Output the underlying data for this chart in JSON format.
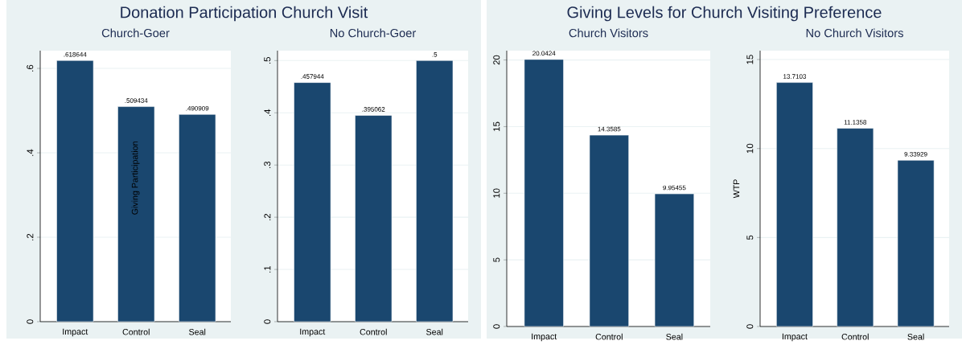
{
  "chart_data": [
    {
      "type": "bar",
      "title": "Donation Participation Church Visit",
      "subtitle": "Church-Goer",
      "ylabel": "Giving Participation",
      "categories": [
        "Impact",
        "Control",
        "Seal"
      ],
      "values": [
        0.618644,
        0.509434,
        0.490909
      ],
      "value_labels": [
        ".618644",
        ".509434",
        ".490909"
      ],
      "color": "#1a476f",
      "ylim": [
        0,
        0.642
      ],
      "yticks": [
        0,
        {
          "value": 0.2,
          "label": ".2"
        },
        {
          "value": 0.4,
          "label": ".4"
        },
        {
          "value": 0.6,
          "label": ".6"
        }
      ],
      "grid": "y"
    },
    {
      "type": "bar",
      "title": "No Church-Goer",
      "categories": [
        "Impact",
        "Control",
        "Seal"
      ],
      "values": [
        0.457944,
        0.395062,
        0.5
      ],
      "value_labels": [
        ".457944",
        ".395062",
        ".5"
      ],
      "color": "#1a476f",
      "ylim": [
        0,
        0.519
      ],
      "yticks": [
        0,
        {
          "value": 0.1,
          "label": ".1"
        },
        {
          "value": 0.2,
          "label": ".2"
        },
        {
          "value": 0.3,
          "label": ".3"
        },
        {
          "value": 0.4,
          "label": ".4"
        },
        {
          "value": 0.5,
          "label": ".5"
        }
      ],
      "grid": "y"
    },
    {
      "type": "bar",
      "title": "Giving Levels for Church Visiting Preference",
      "subtitle": "Church Visitors",
      "categories": [
        "Impact",
        "Control",
        "Seal"
      ],
      "values": [
        20.0424,
        14.3585,
        9.95455
      ],
      "value_labels": [
        "20.0424",
        "14.3585",
        "9.95455"
      ],
      "color": "#1a476f",
      "ylim": [
        0,
        20.7
      ],
      "yticks": [
        0,
        5,
        10,
        15,
        20
      ],
      "grid": "y"
    },
    {
      "type": "bar",
      "title": "No Church Visitors",
      "ylabel": "WTP",
      "categories": [
        "Impact",
        "Control",
        "Seal"
      ],
      "values": [
        13.7103,
        11.1358,
        9.33929
      ],
      "value_labels": [
        "13.7103",
        "11.1358",
        "9.33929"
      ],
      "color": "#1a476f",
      "ylim": [
        0,
        15.5
      ],
      "yticks": [
        0,
        5,
        10,
        15
      ],
      "grid": "y"
    }
  ]
}
